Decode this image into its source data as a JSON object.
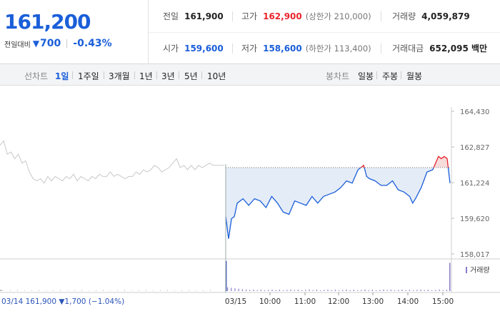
{
  "summary": {
    "current_price": "161,200",
    "change_label": "전일대비",
    "change_arrow": "▼",
    "change_amount": "700",
    "change_pct": "-0.43%",
    "prev_close_label": "전일",
    "prev_close": "161,900",
    "high_label": "고가",
    "high": "162,900",
    "upper_limit": "(상한가 210,000)",
    "volume_label": "거래량",
    "volume": "4,059,879",
    "open_label": "시가",
    "open": "159,600",
    "low_label": "저가",
    "low": "158,600",
    "lower_limit": "(하한가 113,400)",
    "amount_label": "거래대금",
    "amount": "652,095 백만"
  },
  "period_bar": {
    "line_label": "선차트",
    "line_items": [
      "1일",
      "1주일",
      "3개월",
      "1년",
      "3년",
      "5년",
      "10년"
    ],
    "line_active": 0,
    "candle_label": "봉차트",
    "candle_items": [
      "일봉",
      "주봉",
      "월봉"
    ]
  },
  "colors": {
    "up": "#e8242c",
    "down": "#1a5ed9",
    "prev_day": "#c8c8c8",
    "fill_down": "#e4ecf7",
    "fill_up": "#f7dcdc"
  },
  "chart_data": {
    "type": "line",
    "y_ticks": [
      "164,430",
      "162,827",
      "161,224",
      "159,620",
      "158,017"
    ],
    "ylim": [
      158017,
      164430
    ],
    "x_ticks": [
      "03/15",
      "10:00",
      "11:00",
      "12:00",
      "13:00",
      "14:00",
      "15:00"
    ],
    "baseline": 161900,
    "prev_day_label": "03/14  161,900 ▼1,700 (−1.04%)",
    "volume_label": "거래량",
    "prev_day_series": {
      "name": "03/14",
      "values": [
        162900,
        163100,
        162500,
        162600,
        162300,
        162500,
        162100,
        162200,
        161700,
        161400,
        161300,
        161400,
        161200,
        161500,
        161300,
        161500,
        161400,
        161300,
        161500,
        161400,
        161600,
        161300,
        161500,
        161400,
        161300,
        161500,
        161400,
        161600,
        161500,
        161500,
        161700,
        161500,
        161600,
        161500,
        161400,
        161500,
        161500,
        161700,
        161600,
        161800,
        161700,
        161800,
        162000,
        161900,
        161700,
        161800,
        161900,
        162100,
        162300,
        161900,
        162000,
        161800,
        162000,
        161800,
        162000,
        161900,
        162000,
        162100,
        162000,
        162000,
        162000,
        162000
      ]
    },
    "intraday_series": {
      "name": "03/15",
      "times": [
        "09:00",
        "09:05",
        "09:10",
        "09:15",
        "09:20",
        "09:30",
        "09:40",
        "09:50",
        "10:00",
        "10:10",
        "10:20",
        "10:30",
        "10:40",
        "10:50",
        "11:00",
        "11:10",
        "11:20",
        "11:30",
        "11:40",
        "11:50",
        "12:00",
        "12:10",
        "12:20",
        "12:30",
        "12:40",
        "12:50",
        "13:00",
        "13:05",
        "13:10",
        "13:20",
        "13:30",
        "13:40",
        "13:50",
        "14:00",
        "14:10",
        "14:20",
        "14:25",
        "14:30",
        "14:40",
        "14:50",
        "15:00",
        "15:10",
        "15:15",
        "15:20",
        "15:25",
        "15:30"
      ],
      "values": [
        159700,
        158700,
        159600,
        159700,
        160300,
        160500,
        160200,
        160500,
        160400,
        160100,
        160600,
        160300,
        159900,
        159800,
        160400,
        160300,
        160200,
        160600,
        160300,
        160600,
        160700,
        160800,
        161000,
        161300,
        161200,
        161800,
        162000,
        161500,
        161400,
        161300,
        161100,
        161100,
        161300,
        160900,
        160800,
        160600,
        160300,
        160500,
        161000,
        161700,
        161800,
        162400,
        162300,
        162400,
        162300,
        161200
      ]
    },
    "volume": {
      "prev_day_open_spike": 0.25,
      "open_spike": 0.98,
      "close_spike": 0.92
    }
  }
}
